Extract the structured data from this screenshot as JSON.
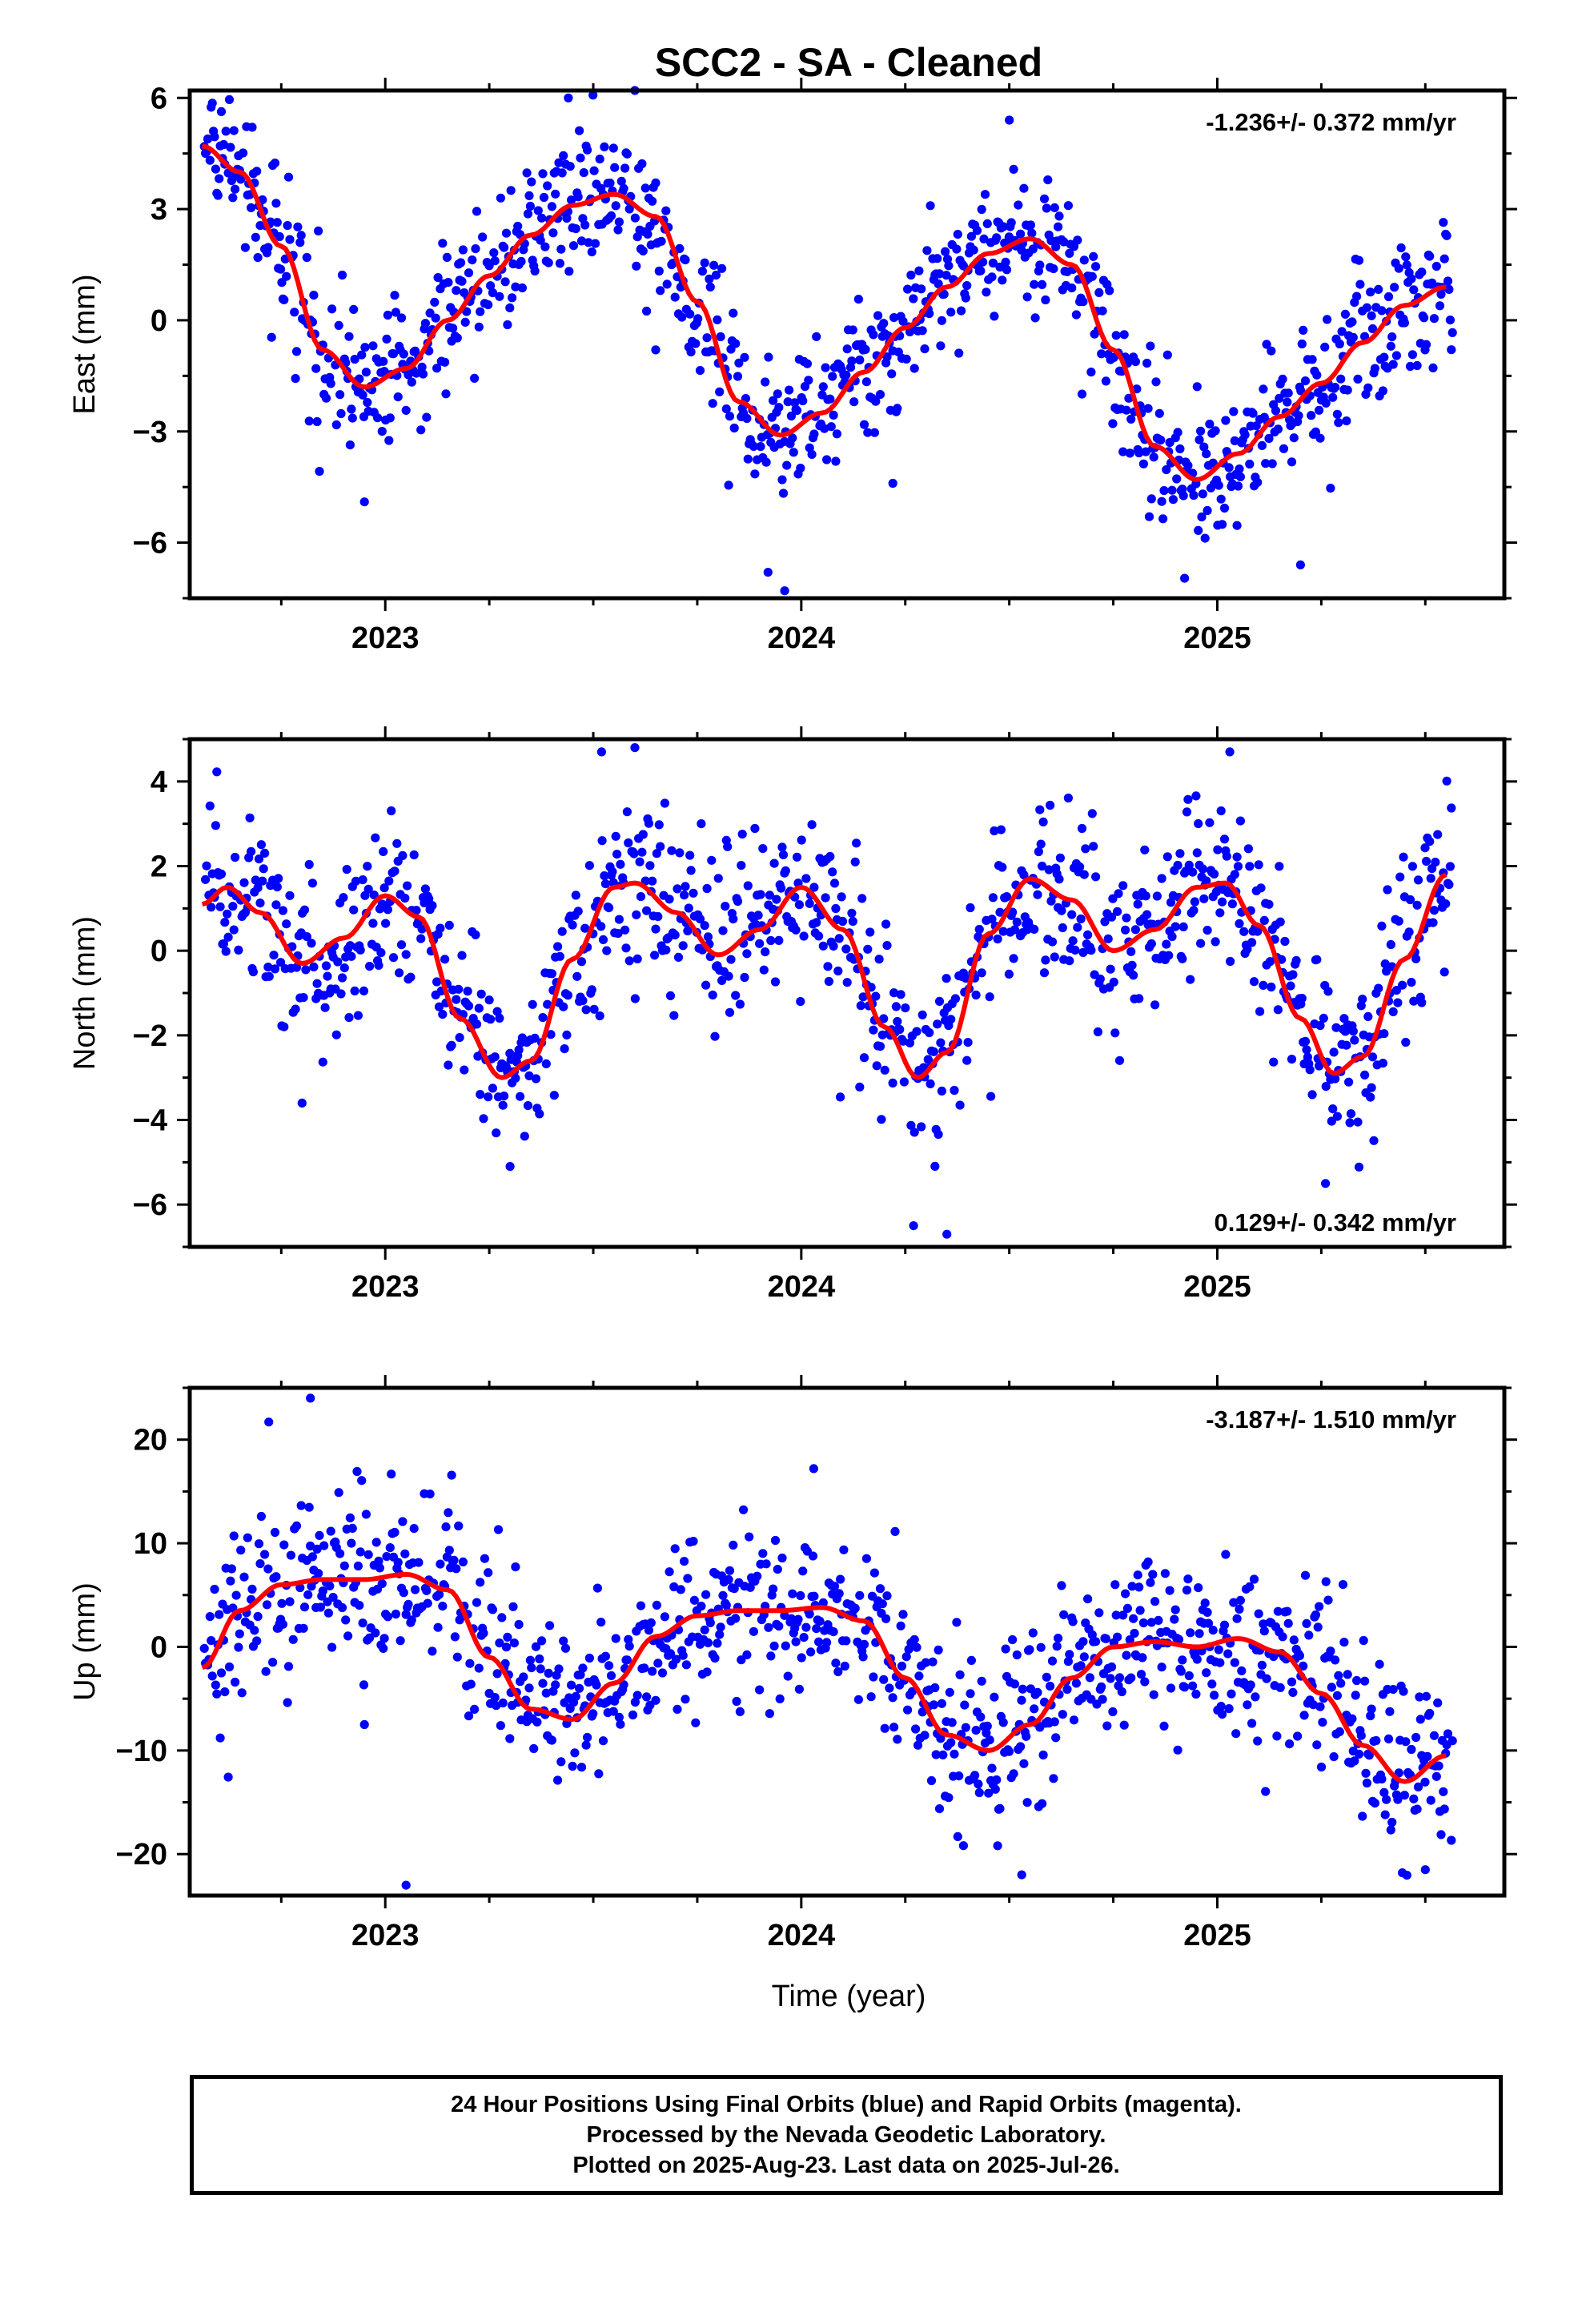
{
  "title": "SCC2  - SA - Cleaned",
  "xlabel": "Time (year)",
  "footer": {
    "line1": "24 Hour Positions Using Final Orbits (blue) and Rapid Orbits (magenta).",
    "line2": "Processed by the Nevada Geodetic Laboratory.",
    "line3": "Plotted on 2025-Aug-23. Last data on 2025-Jul-26."
  },
  "colors": {
    "points": "#0000ff",
    "fit": "#ff0000",
    "axes": "#000000"
  },
  "chart_data": [
    {
      "type": "scatter",
      "panel": "east",
      "ylabel": "East (mm)",
      "annotation": "-1.236+/- 0.372 mm/yr",
      "annotation_position": "top-right",
      "xlim": [
        2022.53,
        2025.69
      ],
      "ylim": [
        -7.5,
        6.2
      ],
      "yticks": [
        -6,
        -3,
        0,
        3,
        6
      ],
      "xticks": [
        2023,
        2024,
        2025
      ],
      "fit_curve": {
        "x": [
          2022.56,
          2022.65,
          2022.75,
          2022.85,
          2022.95,
          2023.05,
          2023.15,
          2023.25,
          2023.35,
          2023.45,
          2023.55,
          2023.65,
          2023.75,
          2023.85,
          2023.95,
          2024.05,
          2024.15,
          2024.25,
          2024.35,
          2024.45,
          2024.55,
          2024.65,
          2024.75,
          2024.85,
          2024.95,
          2025.05,
          2025.15,
          2025.25,
          2025.35,
          2025.45,
          2025.55
        ],
        "y": [
          4.7,
          4.0,
          2.0,
          -0.8,
          -1.8,
          -1.3,
          0.0,
          1.2,
          2.3,
          3.1,
          3.4,
          2.8,
          0.5,
          -2.2,
          -3.1,
          -2.5,
          -1.4,
          -0.2,
          0.9,
          1.8,
          2.2,
          1.5,
          -0.8,
          -3.4,
          -4.3,
          -3.6,
          -2.6,
          -1.7,
          -0.6,
          0.4,
          0.9
        ]
      },
      "scatter_model": {
        "noise": 0.95,
        "outliers": [
          [
            2022.95,
            -4.9
          ],
          [
            2023.96,
            -7.3
          ],
          [
            2023.92,
            -6.8
          ],
          [
            2023.6,
            6.2
          ],
          [
            2023.44,
            6.0
          ],
          [
            2024.5,
            5.4
          ],
          [
            2025.2,
            -6.6
          ],
          [
            2023.65,
            -0.8
          ],
          [
            2024.22,
            -4.4
          ]
        ]
      }
    },
    {
      "type": "scatter",
      "panel": "north",
      "ylabel": "North (mm)",
      "annotation": "0.129+/- 0.342 mm/yr",
      "annotation_position": "bottom-right",
      "xlim": [
        2022.53,
        2025.69
      ],
      "ylim": [
        -7.0,
        5.0
      ],
      "yticks": [
        -6,
        -4,
        -2,
        0,
        2,
        4
      ],
      "xticks": [
        2023,
        2024,
        2025
      ],
      "fit_curve": {
        "x": [
          2022.56,
          2022.62,
          2022.7,
          2022.8,
          2022.9,
          2023.0,
          2023.08,
          2023.18,
          2023.28,
          2023.35,
          2023.45,
          2023.55,
          2023.6,
          2023.7,
          2023.8,
          2023.9,
          2024.0,
          2024.1,
          2024.2,
          2024.28,
          2024.35,
          2024.45,
          2024.55,
          2024.65,
          2024.75,
          2024.85,
          2024.95,
          2025.02,
          2025.1,
          2025.2,
          2025.28,
          2025.35,
          2025.45,
          2025.55
        ],
        "y": [
          1.1,
          1.5,
          0.9,
          -0.3,
          0.3,
          1.3,
          0.8,
          -1.6,
          -3.0,
          -2.6,
          -0.2,
          1.5,
          1.6,
          0.9,
          -0.1,
          0.5,
          1.5,
          0.5,
          -1.8,
          -3.0,
          -2.4,
          0.4,
          1.7,
          1.2,
          0.0,
          0.5,
          1.5,
          1.6,
          0.6,
          -1.6,
          -2.9,
          -2.5,
          -0.2,
          1.8
        ]
      },
      "scatter_model": {
        "noise": 1.0,
        "outliers": [
          [
            2023.3,
            -5.1
          ],
          [
            2024.27,
            -6.5
          ],
          [
            2024.35,
            -6.7
          ],
          [
            2023.6,
            4.8
          ],
          [
            2023.52,
            4.7
          ],
          [
            2025.03,
            4.7
          ],
          [
            2022.8,
            -3.6
          ],
          [
            2025.26,
            -5.5
          ]
        ]
      }
    },
    {
      "type": "scatter",
      "panel": "up",
      "ylabel": "Up (mm)",
      "annotation": "-3.187+/- 1.510 mm/yr",
      "annotation_position": "top-right",
      "xlim": [
        2022.53,
        2025.69
      ],
      "ylim": [
        -24,
        25
      ],
      "yticks": [
        -20,
        -10,
        0,
        10,
        20
      ],
      "xticks": [
        2023,
        2024,
        2025
      ],
      "fit_curve": {
        "x": [
          2022.56,
          2022.65,
          2022.75,
          2022.85,
          2022.95,
          2023.05,
          2023.15,
          2023.25,
          2023.35,
          2023.45,
          2023.55,
          2023.65,
          2023.75,
          2023.85,
          2023.95,
          2024.05,
          2024.15,
          2024.25,
          2024.35,
          2024.45,
          2024.55,
          2024.65,
          2024.75,
          2024.85,
          2024.95,
          2025.05,
          2025.15,
          2025.25,
          2025.35,
          2025.45,
          2025.55
        ],
        "y": [
          -2.0,
          3.5,
          6.0,
          6.5,
          6.5,
          7.0,
          5.5,
          -1.0,
          -6.0,
          -7.0,
          -3.5,
          1.0,
          3.0,
          3.5,
          3.5,
          3.8,
          2.5,
          -3.0,
          -8.5,
          -10.0,
          -7.5,
          -3.0,
          0.0,
          0.5,
          0.0,
          0.8,
          -0.5,
          -4.5,
          -9.5,
          -13.0,
          -10.5
        ]
      },
      "scatter_model": {
        "noise": 4.2,
        "outliers": [
          [
            2022.82,
            24.0
          ],
          [
            2022.72,
            21.7
          ],
          [
            2023.05,
            -23.0
          ],
          [
            2024.53,
            -22.0
          ],
          [
            2025.5,
            -21.5
          ],
          [
            2024.03,
            17.2
          ],
          [
            2022.95,
            -7.5
          ]
        ]
      }
    }
  ]
}
